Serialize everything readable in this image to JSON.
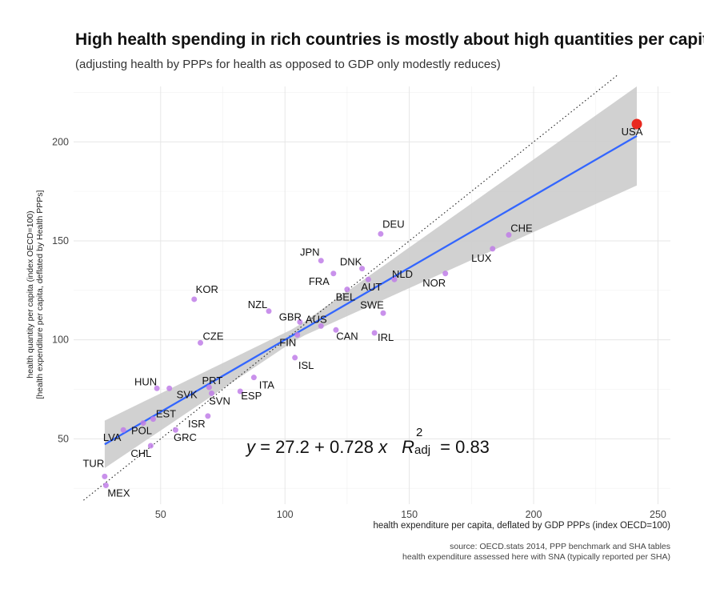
{
  "title": "High health spending in rich countries is mostly about high quantities per capita",
  "subtitle": "(adjusting health by PPPs for health as opposed to GDP only modestly reduces)",
  "equation": {
    "y": "y",
    "eq": " = 27.2 + 0.728 ",
    "x": "x",
    "R": "R",
    "sup": "2",
    "sub": "adj",
    "r2val": " = 0.83"
  },
  "caption": {
    "line1": "source: OECD.stats 2014, PPP benchmark and SHA tables",
    "line2": "health expenditure assessed here with SNA (typically reported per SHA)"
  },
  "colors": {
    "point": "#c07ee8",
    "highlight": "#e8281e",
    "fit": "#3366ff",
    "ribbon": "#cccccc",
    "grid": "#e6e6e6"
  },
  "chart_data": {
    "type": "scatter",
    "title": "High health spending in rich countries is mostly about high quantities per capita",
    "xlabel": "health expenditure per capita, deflated by GDP PPPs (index OECD=100)",
    "ylabel": "health quantity per capita (index OECD=100)",
    "ylabel2": "[health expenditure per capita, deflated by Health PPPs]",
    "xlim": [
      15,
      255
    ],
    "ylim": [
      17,
      228
    ],
    "xticks": [
      50,
      100,
      150,
      200,
      250
    ],
    "yticks": [
      50,
      100,
      150,
      200
    ],
    "grid": true,
    "fit": {
      "intercept": 27.2,
      "slope": 0.728,
      "r2_adj": 0.83,
      "ci_start": [
        9,
        8
      ],
      "ci_end": [
        22,
        22
      ]
    },
    "reference_line": {
      "intercept": 0,
      "slope": 1,
      "style": "dotted"
    },
    "highlight": "USA",
    "points": [
      {
        "label": "USA",
        "x": 241.5,
        "y": 209
      },
      {
        "label": "CHE",
        "x": 190,
        "y": 153
      },
      {
        "label": "LUX",
        "x": 183.5,
        "y": 146
      },
      {
        "label": "NOR",
        "x": 164.5,
        "y": 133.5
      },
      {
        "label": "DEU",
        "x": 138.5,
        "y": 153.5
      },
      {
        "label": "NLD",
        "x": 144,
        "y": 130.5
      },
      {
        "label": "DNK",
        "x": 131,
        "y": 136
      },
      {
        "label": "JPN",
        "x": 114.5,
        "y": 140
      },
      {
        "label": "FRA",
        "x": 119.5,
        "y": 133.5
      },
      {
        "label": "AUT",
        "x": 133.5,
        "y": 130.5
      },
      {
        "label": "BEL",
        "x": 125,
        "y": 125.5
      },
      {
        "label": "SWE",
        "x": 139.5,
        "y": 113.5
      },
      {
        "label": "IRL",
        "x": 136,
        "y": 103.5
      },
      {
        "label": "AUS",
        "x": 114.5,
        "y": 107
      },
      {
        "label": "CAN",
        "x": 120.5,
        "y": 105
      },
      {
        "label": "GBR",
        "x": 106,
        "y": 109
      },
      {
        "label": "FIN",
        "x": 105,
        "y": 102.5
      },
      {
        "label": "ISL",
        "x": 104,
        "y": 91
      },
      {
        "label": "NZL",
        "x": 93.5,
        "y": 114.5
      },
      {
        "label": "KOR",
        "x": 63.5,
        "y": 120.5
      },
      {
        "label": "CZE",
        "x": 66,
        "y": 98.5
      },
      {
        "label": "ITA",
        "x": 87.5,
        "y": 81
      },
      {
        "label": "ESP",
        "x": 82,
        "y": 74
      },
      {
        "label": "PRT",
        "x": 69.5,
        "y": 76
      },
      {
        "label": "SVN",
        "x": 70.5,
        "y": 73
      },
      {
        "label": "SVK",
        "x": 53.5,
        "y": 75.5
      },
      {
        "label": "HUN",
        "x": 48.5,
        "y": 75.5
      },
      {
        "label": "EST",
        "x": 47,
        "y": 60
      },
      {
        "label": "ISR",
        "x": 69,
        "y": 61.5
      },
      {
        "label": "POL",
        "x": 43,
        "y": 58
      },
      {
        "label": "GRC",
        "x": 56,
        "y": 54.5
      },
      {
        "label": "LVA",
        "x": 35,
        "y": 54.5
      },
      {
        "label": "CHL",
        "x": 46,
        "y": 46.5
      },
      {
        "label": "TUR",
        "x": 27.5,
        "y": 31
      },
      {
        "label": "MEX",
        "x": 28,
        "y": 26.5
      }
    ]
  }
}
